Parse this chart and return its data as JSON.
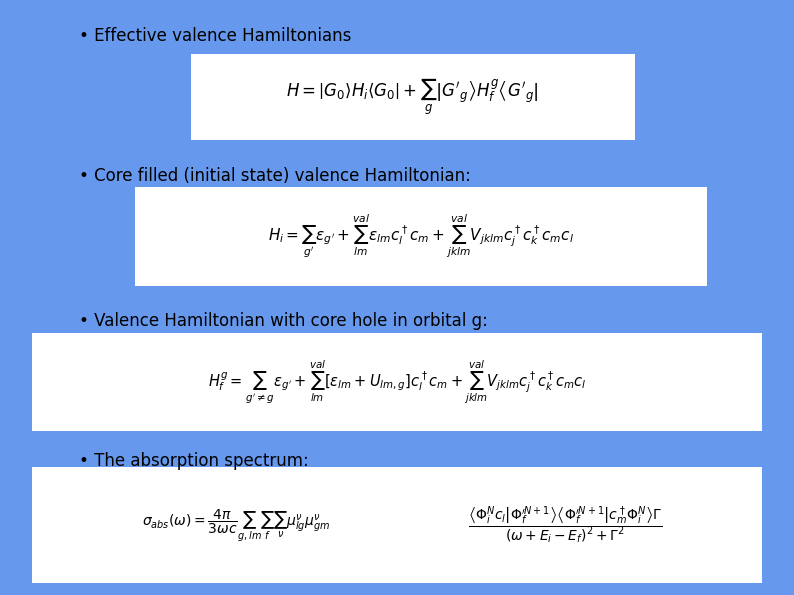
{
  "background_color": "#6699ee",
  "box_color": "#ffffff",
  "text_color": "#000000",
  "fig_width": 7.94,
  "fig_height": 5.95,
  "dpi": 100,
  "bullet1_text": "Effective valence Hamiltonians",
  "bullet2_text": "Core filled (initial state) valence Hamiltonian:",
  "bullet3_text": "Valence Hamiltonian with core hole in orbital g:",
  "bullet4_text": "The absorption spectrum:",
  "fontsize_bullet": 12,
  "fontsize_eq1": 12,
  "fontsize_eq2": 11,
  "fontsize_eq3": 10.5,
  "fontsize_eq4": 10
}
